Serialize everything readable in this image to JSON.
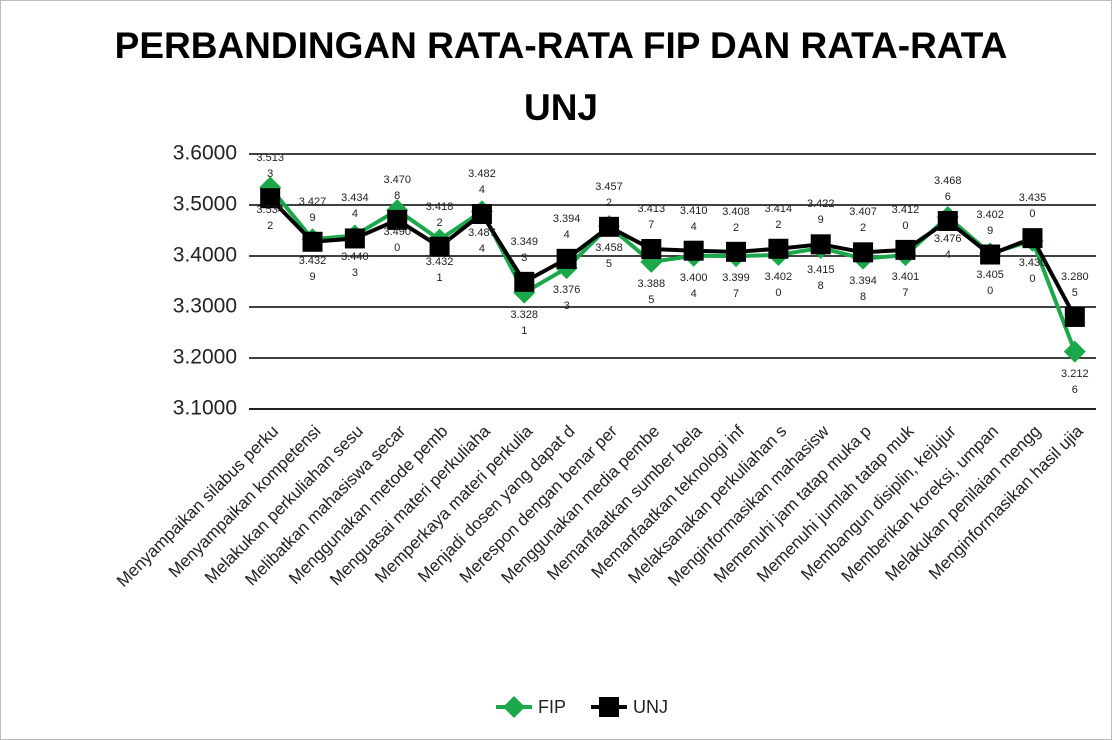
{
  "chart_data": {
    "type": "line",
    "title": "PERBANDINGAN RATA-RATA FIP DAN RATA-RATA UNJ",
    "categories": [
      "Menyampaikan silabus perku",
      "Menyampaikan kompetensi",
      "Melakukan perkuliahan sesu",
      "Melibatkan mahasiswa secar",
      "Menggunakan metode pemb",
      "Menguasai materi perkuliaha",
      "Memperkaya materi perkulia",
      "Menjadi dosen yang dapat d",
      "Merespon dengan benar per",
      "Menggunakan media pembe",
      "Memanfaatkan sumber bela",
      "Memanfaatkan teknologi inf",
      "Melaksanakan perkuliahan s",
      "Menginformasikan mahasisw",
      "Memenuhi jam tatap muka p",
      "Memenuhi jumlah tatap muk",
      "Membangun disiplin, kejujur",
      "Memberikan koreksi, umpan",
      "Melakukan penilaian mengg",
      "Menginformasikan hasil ujia"
    ],
    "series": [
      {
        "name": "FIP",
        "color": "#1aa84a",
        "marker": "diamond",
        "label_side": "below",
        "values": [
          3.5342,
          3.4329,
          3.4403,
          3.49,
          3.4321,
          3.4874,
          3.3281,
          3.3763,
          3.4585,
          3.3885,
          3.4004,
          3.3997,
          3.402,
          3.4158,
          3.3948,
          3.4017,
          3.4764,
          3.405,
          3.43,
          3.2126
        ],
        "value_labels": [
          "3.5342",
          "3.4329",
          "3.4403",
          "3.4900",
          "3.4321",
          "3.4874",
          "3.3281",
          "3.3763",
          "3.4585",
          "3.3885",
          "3.4004",
          "3.3997",
          "3.4020",
          "3.4158",
          "3.3948",
          "3.4017",
          "3.4764",
          "3.4050",
          "3.4300",
          "3.2126"
        ]
      },
      {
        "name": "UNJ",
        "color": "#000000",
        "marker": "square",
        "label_side": "above",
        "values": [
          3.5133,
          3.4279,
          3.4344,
          3.4708,
          3.4182,
          3.4824,
          3.3493,
          3.3944,
          3.4572,
          3.4137,
          3.4104,
          3.4082,
          3.4142,
          3.4229,
          3.4072,
          3.412,
          3.4686,
          3.4029,
          3.435,
          3.2805
        ],
        "value_labels": [
          "3.5133",
          "3.4279",
          "3.4344",
          "3.4708",
          "3.4182",
          "3.4824",
          "3.3493",
          "3.3944",
          "3.4572",
          "3.4137",
          "3.4104",
          "3.4082",
          "3.4142",
          "3.4229",
          "3.4072",
          "3.4120",
          "3.4686",
          "3.4029",
          "3.4350",
          "3.2805"
        ]
      }
    ],
    "ylim": [
      3.1,
      3.6
    ],
    "yticks": [
      {
        "value": 3.1,
        "label": "3.1000"
      },
      {
        "value": 3.2,
        "label": "3.2000"
      },
      {
        "value": 3.3,
        "label": "3.3000"
      },
      {
        "value": 3.4,
        "label": "3.4000"
      },
      {
        "value": 3.5,
        "label": "3.5000"
      },
      {
        "value": 3.6,
        "label": "3.6000"
      }
    ],
    "grid": true,
    "legend": "bottom"
  }
}
